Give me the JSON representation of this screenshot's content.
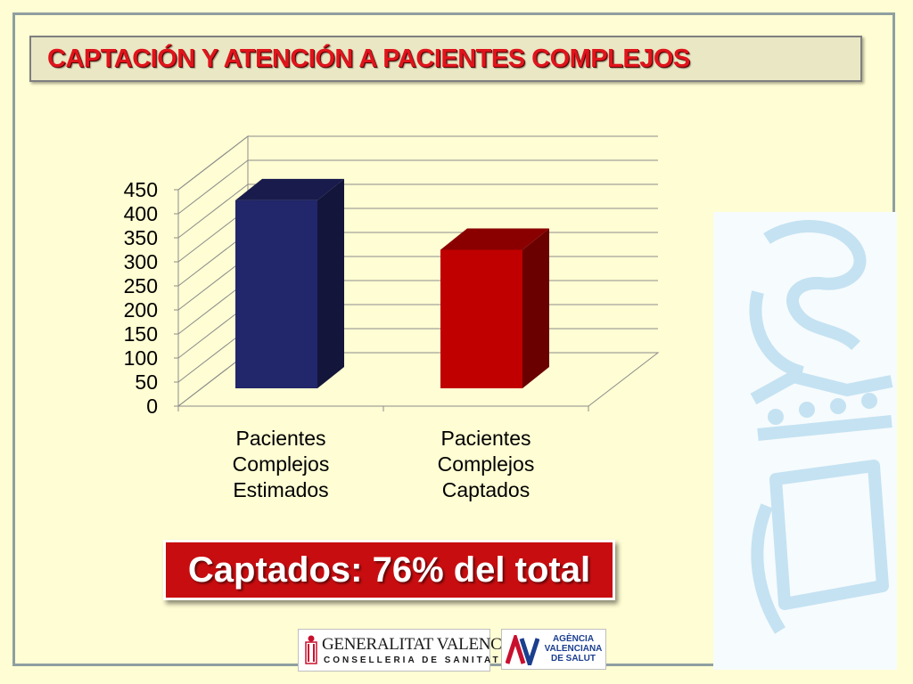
{
  "slide": {
    "title": "CAPTACIÓN Y ATENCIÓN A PACIENTES COMPLEJOS",
    "callout": "Captados: 76% del total"
  },
  "logos": {
    "generalitat_line1": "GENERALITAT VALENCIANA",
    "generalitat_line2": "CONSELLERIA DE SANITAT",
    "agencia_line1": "AGÈNCIA",
    "agencia_line2": "VALENCIANA",
    "agencia_line3": "DE SALUT",
    "agencia_mark": "AV"
  },
  "colors": {
    "background": "#fffdd3",
    "title_red": "#e0141c",
    "callout_red": "#c80d10",
    "bar_blue": "#22266a",
    "bar_red": "#c00000"
  },
  "chart_data": {
    "type": "bar",
    "style": "3d",
    "categories": [
      [
        "Pacientes",
        "Complejos",
        "Estimados"
      ],
      [
        "Pacientes",
        "Complejos",
        "Captados"
      ]
    ],
    "values": [
      428,
      325
    ],
    "bar_colors": [
      "#22266a",
      "#c00000"
    ],
    "ylim": [
      0,
      450
    ],
    "yticks": [
      0,
      50,
      100,
      150,
      200,
      250,
      300,
      350,
      400,
      450
    ],
    "grid": true,
    "legend": false
  }
}
